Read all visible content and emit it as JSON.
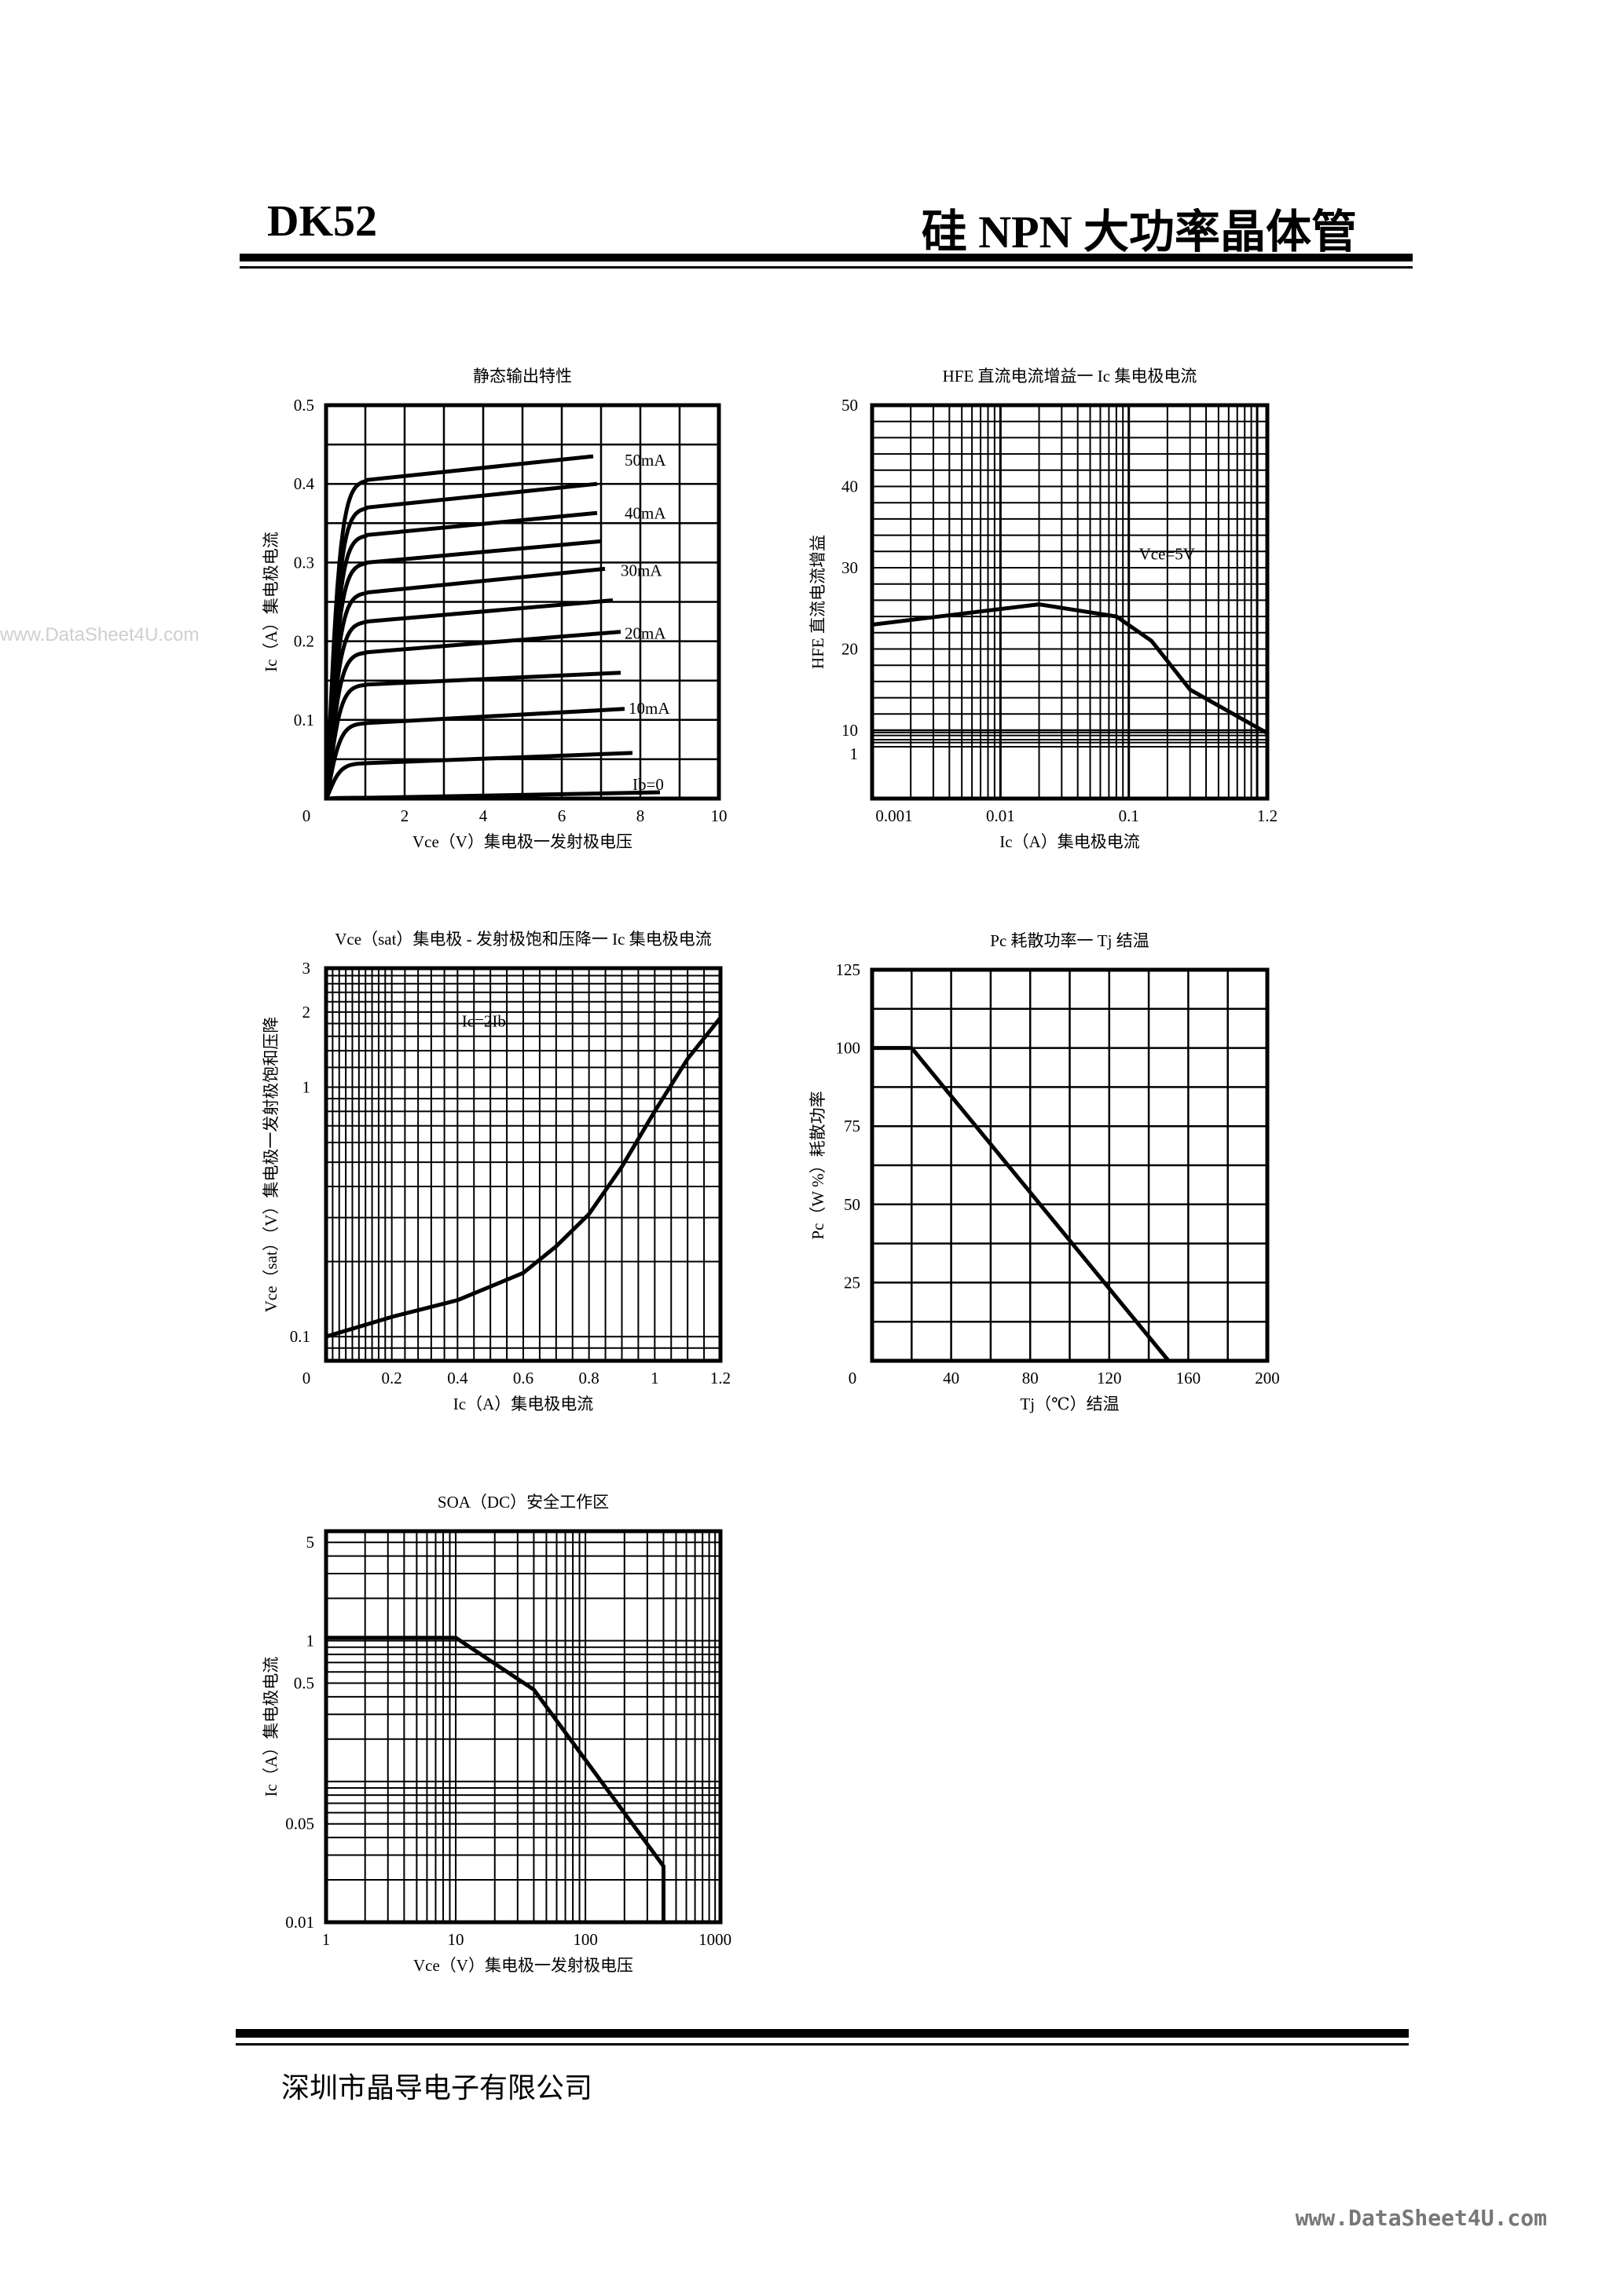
{
  "header": {
    "model": "DK52",
    "title": "硅 NPN 大功率晶体管"
  },
  "footer": {
    "company": "深圳市晶导电子有限公司"
  },
  "watermarks": {
    "left": "www.DataSheet4U.com",
    "bottom": "www.DataSheet4U.com"
  },
  "chart_data": [
    {
      "id": "output",
      "type": "line",
      "title": "静态输出特性",
      "xlabel": "Vce（V）集电极一发射极电压",
      "ylabel": "Ic（A）集电极电流",
      "xlim": [
        0,
        10
      ],
      "ylim": [
        0,
        0.5
      ],
      "xticks": [
        "0",
        "2",
        "4",
        "6",
        "8",
        "10"
      ],
      "yticks": [
        "0",
        "0.1",
        "0.2",
        "0.3",
        "0.4",
        "0.5"
      ],
      "annotations": [
        "50mA",
        "40mA",
        "30mA",
        "20mA",
        "10mA",
        "Ib=0"
      ],
      "series": [
        {
          "sat": 0.405,
          "x_end": 6.8,
          "y_end": 0.435
        },
        {
          "sat": 0.37,
          "x_end": 6.9,
          "y_end": 0.4
        },
        {
          "sat": 0.335,
          "x_end": 6.9,
          "y_end": 0.363
        },
        {
          "sat": 0.3,
          "x_end": 7.0,
          "y_end": 0.327
        },
        {
          "sat": 0.262,
          "x_end": 7.1,
          "y_end": 0.292
        },
        {
          "sat": 0.225,
          "x_end": 7.3,
          "y_end": 0.252
        },
        {
          "sat": 0.186,
          "x_end": 7.5,
          "y_end": 0.212
        },
        {
          "sat": 0.145,
          "x_end": 7.5,
          "y_end": 0.16
        },
        {
          "sat": 0.096,
          "x_end": 7.6,
          "y_end": 0.114
        },
        {
          "sat": 0.045,
          "x_end": 7.8,
          "y_end": 0.058
        },
        {
          "sat": 0.001,
          "x_end": 8.5,
          "y_end": 0.008
        }
      ]
    },
    {
      "id": "hfe",
      "type": "line",
      "title": "HFE 直流电流增益一 Ic 集电极电流",
      "xlabel": "Ic（A）集电极电流",
      "ylabel": "HFE 直流电流增益",
      "xticks": [
        "0.001",
        "0.01",
        "0.1",
        "1.2"
      ],
      "yticks": [
        "1",
        "10",
        "20",
        "30",
        "40",
        "50"
      ],
      "annotations": [
        "Vce=5V"
      ],
      "x": [
        0.001,
        0.02,
        0.08,
        0.15,
        0.3,
        1.2
      ],
      "y": [
        23,
        25.5,
        24,
        21,
        15,
        7.5
      ]
    },
    {
      "id": "vcesat",
      "type": "line",
      "title": "Vce（sat）集电极 - 发射极饱和压降一 Ic 集电极电流",
      "xlabel": "Ic（A）集电极电流",
      "ylabel": "Vce（sat）（V）集电极一发射极饱和压降",
      "xticks": [
        "0",
        "0.2",
        "0.4",
        "0.6",
        "0.8",
        "1",
        "1.2"
      ],
      "yticks": [
        "0.1",
        "1",
        "2",
        "3"
      ],
      "annotations": [
        "Ic=2Ib"
      ],
      "x": [
        0,
        0.2,
        0.4,
        0.6,
        0.7,
        0.8,
        0.9,
        1.0,
        1.1,
        1.2
      ],
      "y": [
        0.1,
        0.12,
        0.14,
        0.18,
        0.23,
        0.31,
        0.48,
        0.8,
        1.3,
        1.9
      ]
    },
    {
      "id": "pc",
      "type": "line",
      "title": "Pc 耗散功率一 Tj 结温",
      "xlabel": "Tj（℃）结温",
      "ylabel": "Pc（W %）耗散功率",
      "xlim": [
        0,
        200
      ],
      "ylim": [
        0,
        125
      ],
      "xticks": [
        "0",
        "40",
        "80",
        "120",
        "160",
        "200"
      ],
      "yticks": [
        "25",
        "50",
        "75",
        "100",
        "125"
      ],
      "x": [
        0,
        20,
        150
      ],
      "y": [
        100,
        100,
        0
      ]
    },
    {
      "id": "soa",
      "type": "line",
      "title": "SOA（DC）安全工作区",
      "xlabel": "Vce（V）集电极一发射极电压",
      "ylabel": "Ic（A）集电极电流",
      "xticks": [
        "1",
        "10",
        "100",
        "1000"
      ],
      "yticks": [
        "0.01",
        "0.05",
        "0.5",
        "1",
        "5"
      ],
      "x": [
        1,
        10,
        40,
        400,
        400
      ],
      "y": [
        1.05,
        1.05,
        0.45,
        0.025,
        0.01
      ]
    }
  ]
}
